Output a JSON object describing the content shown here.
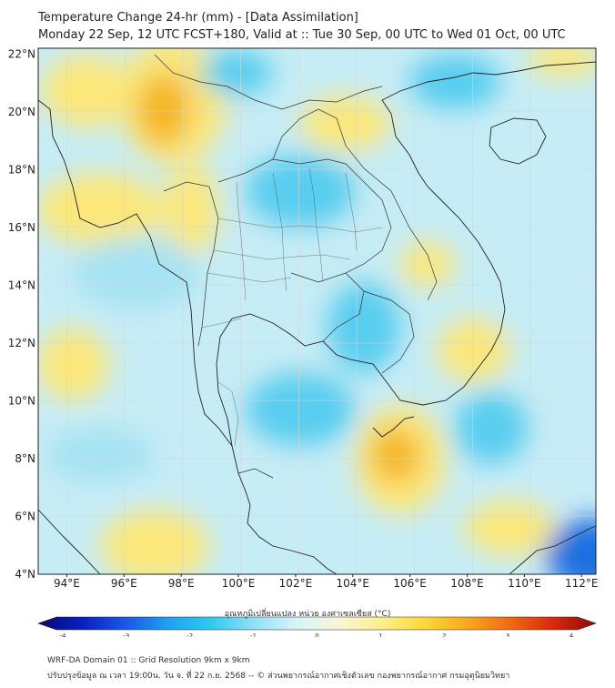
{
  "title": {
    "line1": "Temperature Change 24-hr (mm) - [Data Assimilation]",
    "line2": "Monday 22 Sep, 12 UTC FCST+180, Valid at :: Tue 30 Sep, 00 UTC to Wed 01 Oct, 00 UTC"
  },
  "axes": {
    "lon_labels": [
      "94°E",
      "96°E",
      "98°E",
      "100°E",
      "102°E",
      "104°E",
      "106°E",
      "108°E",
      "110°E",
      "112°E"
    ],
    "lat_labels": [
      "22°N",
      "20°N",
      "18°N",
      "16°N",
      "14°N",
      "12°N",
      "10°N",
      "8°N",
      "6°N",
      "4°N"
    ],
    "lon_range": [
      93,
      112.5
    ],
    "lat_range": [
      4,
      22.2
    ]
  },
  "colorbar": {
    "title": "อุณหภูมิเปลี่ยนแปลง หน่วย องศาเซลเซียส (°C)",
    "ticks": [
      "-4",
      "-3",
      "-2",
      "-1",
      "0",
      "1",
      "2",
      "3",
      "4"
    ],
    "colors": [
      "#08086e",
      "#0a1fbf",
      "#1a55e6",
      "#1f9ff0",
      "#2fc8f0",
      "#8fe0f5",
      "#d8f3f8",
      "#f7f7d8",
      "#fbf08a",
      "#fbd83a",
      "#f8a81f",
      "#f06a14",
      "#d92a0c",
      "#8c0a0a"
    ]
  },
  "footer": {
    "line1": "WRF-DA Domain 01 :: Grid Resolution 9km x 9km",
    "line2": "ปรับปรุงข้อมูล ณ เวลา 19:00น. วัน จ. ที่ 22 ก.ย. 2568 -- © ส่วนพยากรณ์อากาศเชิงตัวเลข กองพยากรณ์อากาศ กรมอุตุนิยมวิทยา"
  },
  "map_layers": {
    "field_colors": {
      "pale_cyan": "#cdeff6",
      "light_blue": "#a6e3f3",
      "cyan": "#58cdef",
      "yellow": "#fbe77a",
      "orange": "#f5b623",
      "deep_blue": "#1a6fe0"
    },
    "field_regions": [
      "warm-myanmar-north",
      "warm-myanmar-west",
      "warm-vietnam-north",
      "warm-gulf-thailand-south",
      "warm-cambodia-east",
      "cool-thailand-north",
      "cool-thailand-northeast",
      "cool-andaman",
      "cool-gulf-thailand",
      "cool-south-china-sea",
      "cold-south-china-sea-southeast"
    ],
    "coastline_color": "#222222",
    "border_color": "#333333"
  }
}
